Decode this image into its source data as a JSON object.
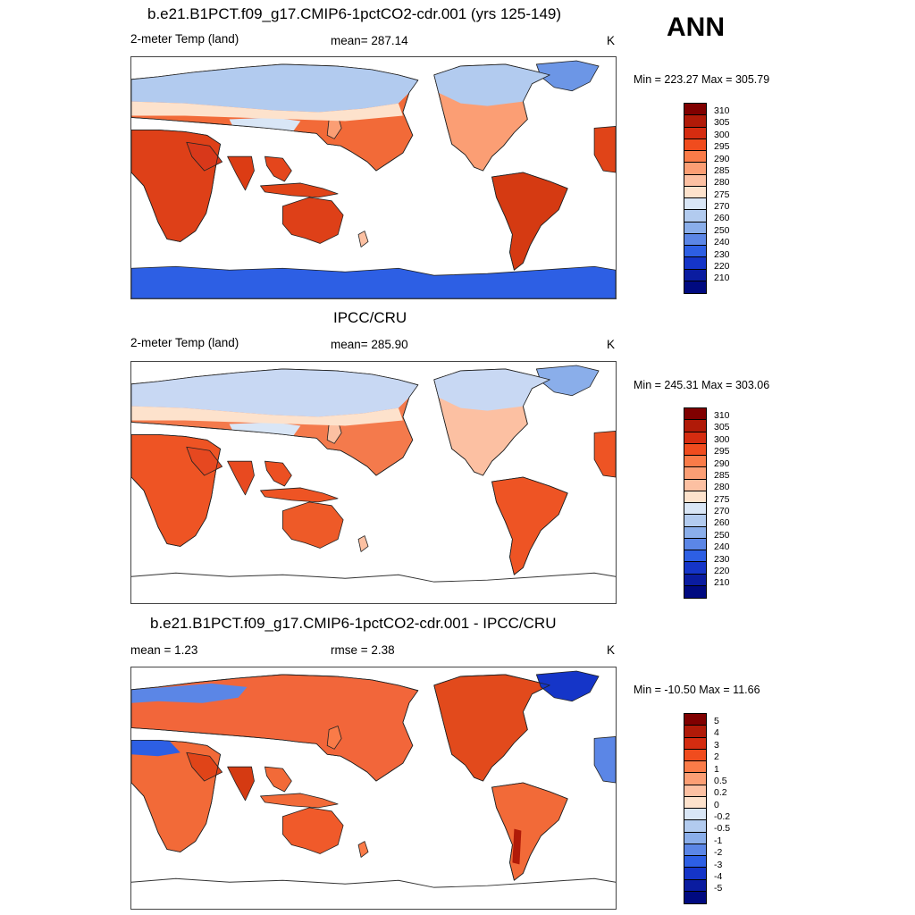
{
  "header": {
    "season": "ANN"
  },
  "panels": [
    {
      "title": "b.e21.B1PCT.f09_g17.CMIP6-1pctCO2-cdr.001 (yrs 125-149)",
      "left_label": "2-meter Temp (land)",
      "center_label": "mean= 287.14",
      "unit": "K",
      "minmax": "Min = 223.27 Max = 305.79",
      "colorbar": {
        "labels": [
          "310",
          "305",
          "300",
          "295",
          "290",
          "285",
          "280",
          "275",
          "270",
          "260",
          "250",
          "240",
          "230",
          "220",
          "210"
        ],
        "colors": [
          "#800000",
          "#b01a08",
          "#d52c10",
          "#f04c1e",
          "#fa7b48",
          "#fb9e74",
          "#fcc0a2",
          "#fde2cc",
          "#d9e6f6",
          "#b2cbef",
          "#8aaeea",
          "#5b86e6",
          "#2d5fe4",
          "#1535c8",
          "#0a1ca0",
          "#000a80"
        ]
      },
      "map": {
        "antarctica": true
      }
    },
    {
      "title": "IPCC/CRU",
      "left_label": "2-meter Temp (land)",
      "center_label": "mean= 285.90",
      "unit": "K",
      "minmax": "Min = 245.31 Max = 303.06",
      "colorbar": {
        "labels": [
          "310",
          "305",
          "300",
          "295",
          "290",
          "285",
          "280",
          "275",
          "270",
          "260",
          "250",
          "240",
          "230",
          "220",
          "210"
        ],
        "colors": [
          "#800000",
          "#b01a08",
          "#d52c10",
          "#f04c1e",
          "#fa7b48",
          "#fb9e74",
          "#fcc0a2",
          "#fde2cc",
          "#d9e6f6",
          "#b2cbef",
          "#8aaeea",
          "#5b86e6",
          "#2d5fe4",
          "#1535c8",
          "#0a1ca0",
          "#000a80"
        ]
      },
      "map": {
        "antarctica": false
      }
    },
    {
      "title": "b.e21.B1PCT.f09_g17.CMIP6-1pctCO2-cdr.001 - IPCC/CRU",
      "left_label": "mean =   1.23",
      "center_label": "rmse =   2.38",
      "unit": "K",
      "minmax": "Min = -10.50 Max =  11.66",
      "colorbar": {
        "labels": [
          "5",
          "4",
          "3",
          "2",
          "1",
          "0.5",
          "0.2",
          "0",
          "-0.2",
          "-0.5",
          "-1",
          "-2",
          "-3",
          "-4",
          "-5"
        ],
        "colors": [
          "#800000",
          "#b01a08",
          "#d52c10",
          "#f04c1e",
          "#fa7b48",
          "#fb9e74",
          "#fcc0a2",
          "#fde2cc",
          "#d9e6f6",
          "#b2cbef",
          "#8aaeea",
          "#5b86e6",
          "#2d5fe4",
          "#1535c8",
          "#0a1ca0",
          "#000a80"
        ]
      },
      "map": {
        "antarctica": false
      }
    }
  ]
}
